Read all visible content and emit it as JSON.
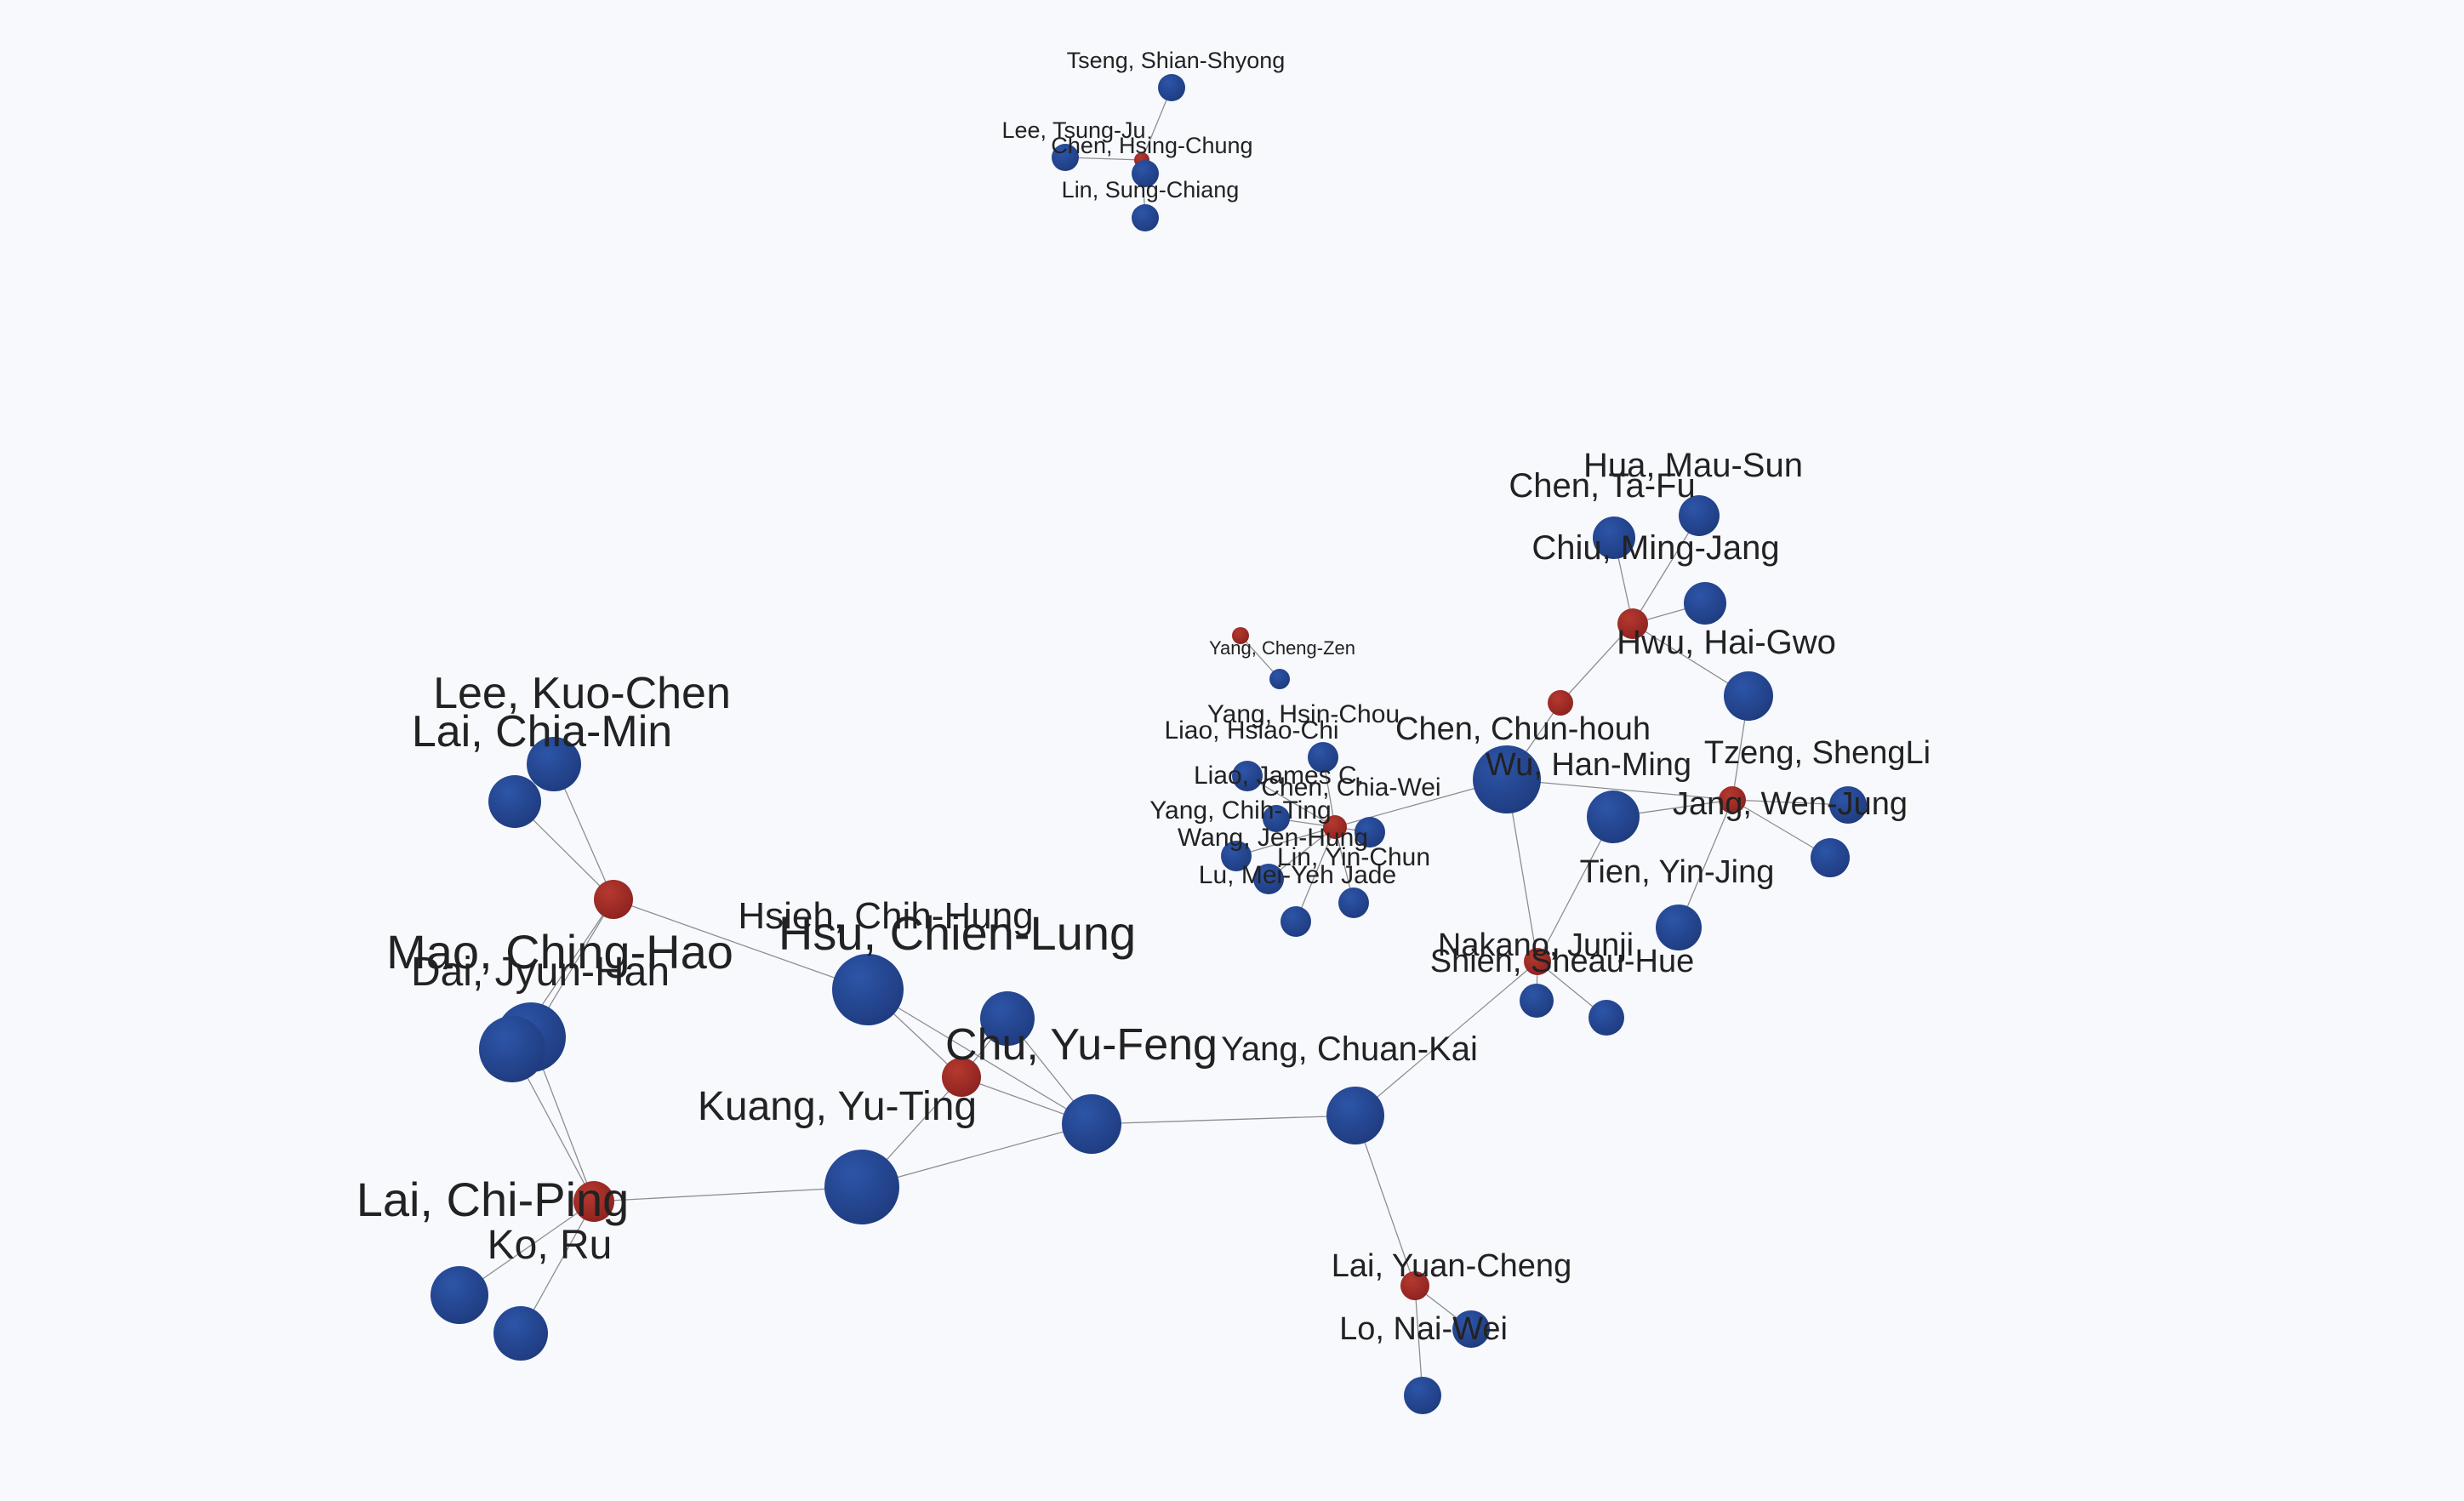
{
  "colors": {
    "background": "#f7f9fd",
    "person_node": "#1f3c80",
    "person_node_highlight": "#2d55a8",
    "link_node": "#8e2320",
    "link_node_highlight": "#b5392f",
    "edge": "#8e8e8e",
    "label": "#222222"
  },
  "graph": {
    "people": [
      {
        "id": "tseng_shian_shyong",
        "label": "Tseng, Shian-Shyong"
      },
      {
        "id": "lee_tsung_ju",
        "label": "Lee, Tsung-Ju"
      },
      {
        "id": "chen_hsing_chung",
        "label": "Chen, Hsing-Chung"
      },
      {
        "id": "lin_sung_chiang",
        "label": "Lin, Sung-Chiang"
      },
      {
        "id": "hua_mau_sun",
        "label": "Hua, Mau-Sun"
      },
      {
        "id": "chen_ta_fu",
        "label": "Chen, Ta-Fu"
      },
      {
        "id": "chiu_ming_jang",
        "label": "Chiu, Ming-Jang"
      },
      {
        "id": "hwu_hai_gwo",
        "label": "Hwu, Hai-Gwo"
      },
      {
        "id": "yang_cheng_zen",
        "label": "Yang, Cheng-Zen"
      },
      {
        "id": "yang_hsin_chou",
        "label": "Yang, Hsin-Chou"
      },
      {
        "id": "liao_hsiao_chi",
        "label": "Liao, Hsiao-Chi"
      },
      {
        "id": "chen_chun_houh",
        "label": "Chen, Chun-houh"
      },
      {
        "id": "wu_han_ming",
        "label": "Wu, Han-Ming"
      },
      {
        "id": "tzeng_shengli",
        "label": "Tzeng, ShengLi"
      },
      {
        "id": "jang_wen_jung",
        "label": "Jang, Wen-Jung"
      },
      {
        "id": "liao_james_c",
        "label": "Liao, James C."
      },
      {
        "id": "chen_chia_wei",
        "label": "Chen, Chia-Wei"
      },
      {
        "id": "yang_chih_ting",
        "label": "Yang, Chih-Ting"
      },
      {
        "id": "wang_jen_hung",
        "label": "Wang, Jen-Hung"
      },
      {
        "id": "lin_yin_chun",
        "label": "Lin, Yin-Chun"
      },
      {
        "id": "lu_mei_yeh_jade",
        "label": "Lu, Mei-Yeh Jade"
      },
      {
        "id": "tien_yin_jing",
        "label": "Tien, Yin-Jing"
      },
      {
        "id": "nakano_junji",
        "label": "Nakano, Junji"
      },
      {
        "id": "shieh_sheau_hue",
        "label": "Shieh, Sheau-Hue"
      },
      {
        "id": "lee_kuo_chen",
        "label": "Lee, Kuo-Chen"
      },
      {
        "id": "lai_chia_min",
        "label": "Lai, Chia-Min"
      },
      {
        "id": "hsieh_chih_hung",
        "label": "Hsieh, Chih-Hung"
      },
      {
        "id": "hsu_chien_lung",
        "label": "Hsu, Chien-Lung"
      },
      {
        "id": "mao_ching_hao",
        "label": "Mao, Ching-Hao"
      },
      {
        "id": "dai_jyun_han",
        "label": "Dai, Jyun-Han"
      },
      {
        "id": "chu_yu_feng",
        "label": "Chu, Yu-Feng"
      },
      {
        "id": "yang_chuan_kai",
        "label": "Yang, Chuan-Kai"
      },
      {
        "id": "kuang_yu_ting",
        "label": "Kuang, Yu-Ting"
      },
      {
        "id": "lai_chi_ping",
        "label": "Lai, Chi-Ping"
      },
      {
        "id": "ko_ru",
        "label": "Ko, Ru"
      },
      {
        "id": "lai_yuan_cheng",
        "label": "Lai, Yuan-Cheng"
      },
      {
        "id": "lo_nai_wei",
        "label": "Lo, Nai-Wei"
      }
    ],
    "link_nodes": [
      {
        "id": "w1"
      },
      {
        "id": "w2"
      },
      {
        "id": "w3"
      },
      {
        "id": "w4"
      },
      {
        "id": "w5"
      },
      {
        "id": "w6"
      },
      {
        "id": "w7"
      },
      {
        "id": "w8"
      },
      {
        "id": "w9"
      },
      {
        "id": "w10"
      },
      {
        "id": "w11"
      }
    ],
    "edges": [
      [
        "w1",
        "tseng_shian_shyong"
      ],
      [
        "w1",
        "lee_tsung_ju"
      ],
      [
        "w1",
        "chen_hsing_chung"
      ],
      [
        "w1",
        "lin_sung_chiang"
      ],
      [
        "w2",
        "hua_mau_sun"
      ],
      [
        "w2",
        "chen_ta_fu"
      ],
      [
        "w2",
        "chiu_ming_jang"
      ],
      [
        "w2",
        "hwu_hai_gwo"
      ],
      [
        "w2",
        "w3"
      ],
      [
        "w3",
        "chen_chun_houh"
      ],
      [
        "w4",
        "yang_cheng_zen"
      ],
      [
        "w5",
        "yang_hsin_chou"
      ],
      [
        "w5",
        "liao_hsiao_chi"
      ],
      [
        "w5",
        "liao_james_c"
      ],
      [
        "w5",
        "chen_chia_wei"
      ],
      [
        "w5",
        "yang_chih_ting"
      ],
      [
        "w5",
        "wang_jen_hung"
      ],
      [
        "w5",
        "lin_yin_chun"
      ],
      [
        "w5",
        "lu_mei_yeh_jade"
      ],
      [
        "w5",
        "chen_chun_houh"
      ],
      [
        "w6",
        "chen_chun_houh"
      ],
      [
        "w6",
        "wu_han_ming"
      ],
      [
        "w6",
        "tzeng_shengli"
      ],
      [
        "w6",
        "jang_wen_jung"
      ],
      [
        "w6",
        "tien_yin_jing"
      ],
      [
        "w6",
        "hwu_hai_gwo"
      ],
      [
        "w7",
        "chen_chun_houh"
      ],
      [
        "w7",
        "wu_han_ming"
      ],
      [
        "w7",
        "nakano_junji"
      ],
      [
        "w7",
        "shieh_sheau_hue"
      ],
      [
        "w7",
        "yang_chuan_kai"
      ],
      [
        "w8",
        "lee_kuo_chen"
      ],
      [
        "w8",
        "lai_chia_min"
      ],
      [
        "w8",
        "hsu_chien_lung"
      ],
      [
        "w8",
        "mao_ching_hao"
      ],
      [
        "w8",
        "dai_jyun_han"
      ],
      [
        "w9",
        "hsu_chien_lung"
      ],
      [
        "w9",
        "hsieh_chih_hung"
      ],
      [
        "w9",
        "chu_yu_feng"
      ],
      [
        "w9",
        "kuang_yu_ting"
      ],
      [
        "chu_yu_feng",
        "yang_chuan_kai"
      ],
      [
        "chu_yu_feng",
        "kuang_yu_ting"
      ],
      [
        "hsieh_chih_hung",
        "chu_yu_feng"
      ],
      [
        "hsu_chien_lung",
        "chu_yu_feng"
      ],
      [
        "w10",
        "kuang_yu_ting"
      ],
      [
        "w10",
        "lai_chi_ping"
      ],
      [
        "w10",
        "ko_ru"
      ],
      [
        "w10",
        "mao_ching_hao"
      ],
      [
        "w10",
        "dai_jyun_han"
      ],
      [
        "w11",
        "yang_chuan_kai"
      ],
      [
        "w11",
        "lai_yuan_cheng"
      ],
      [
        "w11",
        "lo_nai_wei"
      ]
    ]
  }
}
